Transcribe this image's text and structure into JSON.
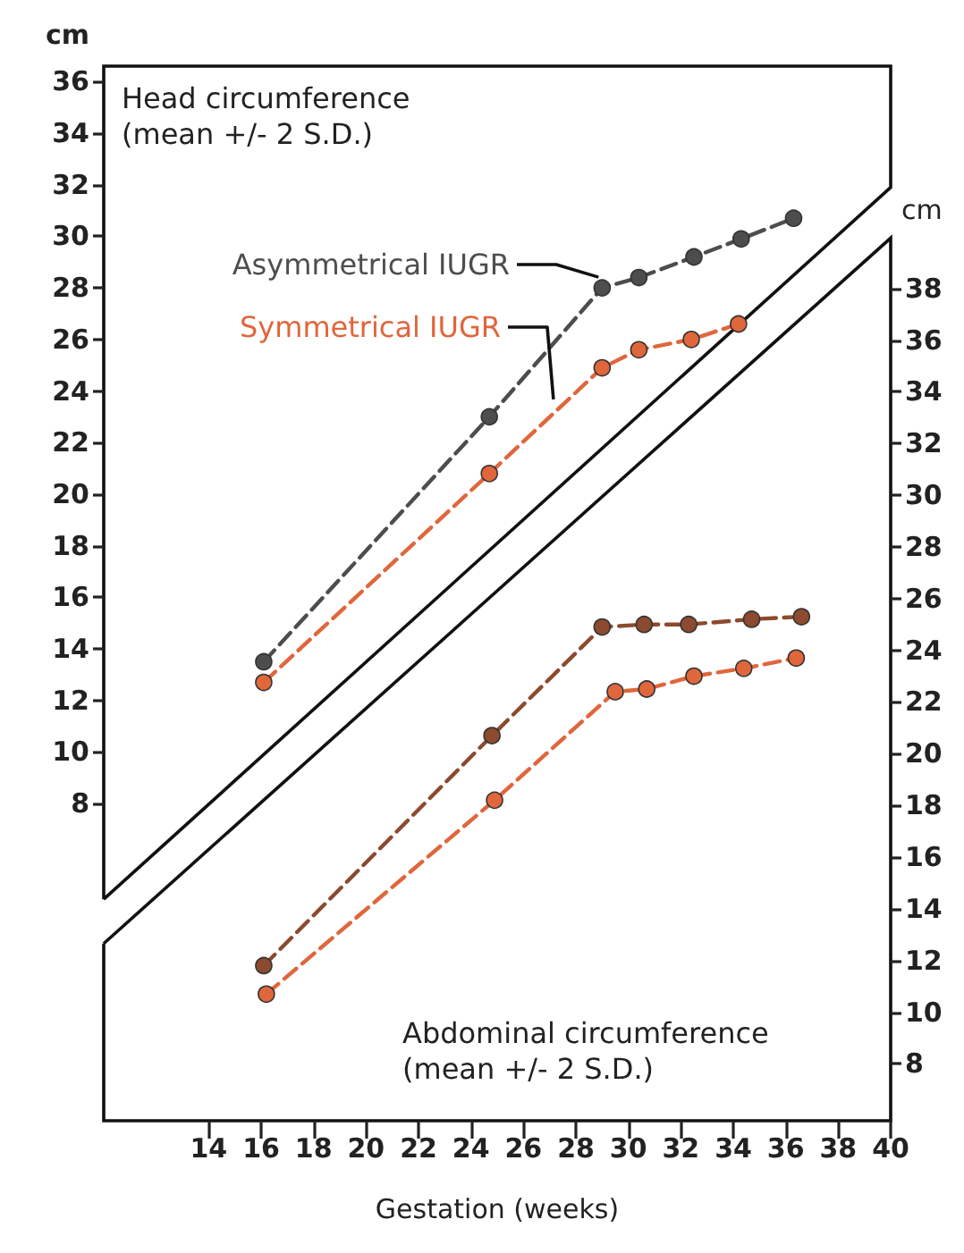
{
  "chart_data": {
    "type": "line",
    "xlabel": "Gestation (weeks)",
    "ylabel": "cm",
    "y2label": "cm",
    "annotations": [
      "Head circumference\n(mean +/- 2 S.D.)",
      "Abdominal circumference\n(mean +/- 2 S.D.)"
    ],
    "xlim": [
      10,
      40
    ],
    "xticks": [
      14,
      16,
      18,
      20,
      22,
      24,
      26,
      28,
      30,
      32,
      34,
      36,
      38,
      40
    ],
    "ylim": [
      -4.3,
      36.6
    ],
    "yticks": [
      8,
      10,
      12,
      14,
      16,
      18,
      20,
      22,
      24,
      26,
      28,
      30,
      32,
      34,
      36
    ],
    "y2lim": [
      5.8,
      46.6
    ],
    "y2ticks": [
      8,
      10,
      12,
      14,
      16,
      18,
      20,
      22,
      24,
      26,
      28,
      30,
      32,
      34,
      36,
      38
    ],
    "marker": "circle",
    "line_style": "dashed",
    "grid": false,
    "legend": false,
    "series": [
      {
        "name": "Asymmetrical IUGR",
        "color": "#4d4d4d",
        "x": [
          16.1,
          24.7,
          29.0,
          30.4,
          32.5,
          34.3,
          36.3
        ],
        "values": [
          13.5,
          23.0,
          28.0,
          28.4,
          29.2,
          29.9,
          30.7
        ]
      },
      {
        "name": "Symmetrical IUGR",
        "color": "#e0663c",
        "x": [
          16.1,
          24.7,
          29.0,
          30.4,
          32.4,
          34.2
        ],
        "values": [
          12.7,
          20.8,
          24.9,
          25.6,
          26.0,
          26.6
        ]
      },
      {
        "color": "#8c4a2e",
        "axis": "y2",
        "x": [
          16.1,
          24.8,
          29.0,
          30.6,
          32.3,
          34.7,
          36.6
        ],
        "values": [
          11.8,
          20.7,
          24.9,
          25.0,
          25.0,
          25.2,
          25.3
        ]
      },
      {
        "color": "#e0663c",
        "axis": "y2",
        "x": [
          16.2,
          24.9,
          29.5,
          30.7,
          32.5,
          34.4,
          36.4
        ],
        "values": [
          10.7,
          18.2,
          22.4,
          22.5,
          23.0,
          23.3,
          23.7
        ]
      }
    ]
  }
}
